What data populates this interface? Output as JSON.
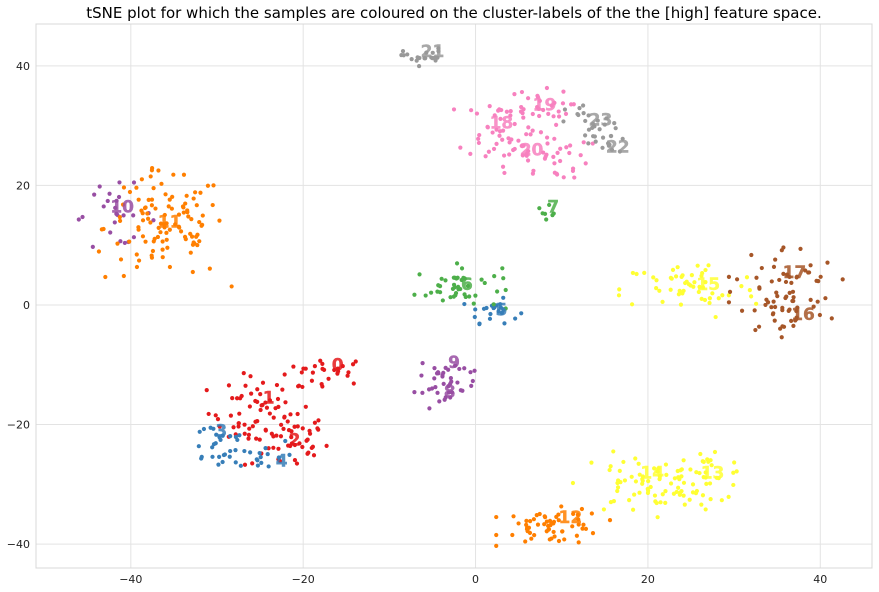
{
  "chart_data": {
    "type": "scatter",
    "title": "tSNE plot for which the samples are coloured on the cluster-labels of the the [high] feature space.",
    "xlabel": "",
    "ylabel": "",
    "xlim": [
      -51,
      46
    ],
    "ylim": [
      -44,
      47
    ],
    "xticks": [
      -40,
      -20,
      0,
      20,
      40
    ],
    "yticks": [
      -40,
      -20,
      0,
      20,
      40
    ],
    "grid": true,
    "clusters": [
      {
        "label": "0",
        "color": "#e41a1c",
        "cx": -17,
        "cy": -11,
        "sx": 2.5,
        "sy": 1.2,
        "n": 25,
        "lx": -16,
        "ly": -10
      },
      {
        "label": "1",
        "color": "#e41a1c",
        "cx": -25,
        "cy": -18,
        "sx": 3.0,
        "sy": 3.0,
        "n": 60,
        "lx": -24,
        "ly": -15.5
      },
      {
        "label": "2",
        "color": "#e41a1c",
        "cx": -22,
        "cy": -23,
        "sx": 2.5,
        "sy": 2.5,
        "n": 45,
        "lx": -21,
        "ly": -22.5
      },
      {
        "label": "3",
        "color": "#377eb8",
        "cx": -30,
        "cy": -23,
        "sx": 2.0,
        "sy": 2.2,
        "n": 25,
        "lx": -29.5,
        "ly": -21
      },
      {
        "label": "4",
        "color": "#377eb8",
        "cx": -25,
        "cy": -25,
        "sx": 2.0,
        "sy": 1.5,
        "n": 18,
        "lx": -22.5,
        "ly": -26
      },
      {
        "label": "5",
        "color": "#377eb8",
        "cx": 2,
        "cy": -1,
        "sx": 1.5,
        "sy": 1.0,
        "n": 22,
        "lx": 3,
        "ly": -0.8
      },
      {
        "label": "6",
        "color": "#4daf4a",
        "cx": -2,
        "cy": 3,
        "sx": 2.5,
        "sy": 1.8,
        "n": 45,
        "lx": -1,
        "ly": 3.5
      },
      {
        "label": "7",
        "color": "#4daf4a",
        "cx": 8.5,
        "cy": 16,
        "sx": 0.5,
        "sy": 0.8,
        "n": 7,
        "lx": 9,
        "ly": 16.5
      },
      {
        "label": "8",
        "color": "#984ea3",
        "cx": -3.5,
        "cy": -14,
        "sx": 1.8,
        "sy": 1.5,
        "n": 25,
        "lx": -3,
        "ly": -14.5
      },
      {
        "label": "9",
        "color": "#984ea3",
        "cx": -3,
        "cy": -11,
        "sx": 1.8,
        "sy": 1.0,
        "n": 15,
        "lx": -2.5,
        "ly": -9.5
      },
      {
        "label": "10",
        "color": "#984ea3",
        "cx": -42,
        "cy": 15,
        "sx": 2.5,
        "sy": 2.5,
        "n": 25,
        "lx": -41,
        "ly": 16.5
      },
      {
        "label": "11",
        "color": "#ff7f00",
        "cx": -36,
        "cy": 13,
        "sx": 3.5,
        "sy": 4.5,
        "n": 110,
        "lx": -35.5,
        "ly": 14
      },
      {
        "label": "12",
        "color": "#ff7f00",
        "cx": 9,
        "cy": -37,
        "sx": 3.0,
        "sy": 1.5,
        "n": 60,
        "lx": 11,
        "ly": -35.5
      },
      {
        "label": "13",
        "color": "#ffff33",
        "cx": 26,
        "cy": -29,
        "sx": 3.0,
        "sy": 2.0,
        "n": 45,
        "lx": 27.5,
        "ly": -28
      },
      {
        "label": "14",
        "color": "#ffff33",
        "cx": 19,
        "cy": -30,
        "sx": 3.5,
        "sy": 2.5,
        "n": 55,
        "lx": 20.5,
        "ly": -28
      },
      {
        "label": "15",
        "color": "#ffff33",
        "cx": 25,
        "cy": 2.5,
        "sx": 4.0,
        "sy": 2.5,
        "n": 55,
        "lx": 27,
        "ly": 3.5
      },
      {
        "label": "16",
        "color": "#a65628",
        "cx": 36,
        "cy": -1,
        "sx": 2.5,
        "sy": 2.0,
        "n": 30,
        "lx": 38,
        "ly": -1.5
      },
      {
        "label": "17",
        "color": "#a65628",
        "cx": 36,
        "cy": 4,
        "sx": 3.0,
        "sy": 3.0,
        "n": 45,
        "lx": 37,
        "ly": 5.5
      },
      {
        "label": "18",
        "color": "#f781bf",
        "cx": 3,
        "cy": 30,
        "sx": 2.5,
        "sy": 2.5,
        "n": 40,
        "lx": 3,
        "ly": 30.5
      },
      {
        "label": "19",
        "color": "#f781bf",
        "cx": 7,
        "cy": 33,
        "sx": 2.0,
        "sy": 1.5,
        "n": 25,
        "lx": 8,
        "ly": 33.5
      },
      {
        "label": "20",
        "color": "#f781bf",
        "cx": 7,
        "cy": 25,
        "sx": 3.0,
        "sy": 2.0,
        "n": 45,
        "lx": 6.5,
        "ly": 26
      },
      {
        "label": "21",
        "color": "#999999",
        "cx": -6,
        "cy": 41.5,
        "sx": 1.2,
        "sy": 0.7,
        "n": 20,
        "lx": -5,
        "ly": 42.5
      },
      {
        "label": "22",
        "color": "#999999",
        "cx": 15,
        "cy": 27,
        "sx": 1.5,
        "sy": 1.2,
        "n": 15,
        "lx": 16.5,
        "ly": 26.5
      },
      {
        "label": "23",
        "color": "#999999",
        "cx": 13.5,
        "cy": 30.5,
        "sx": 1.5,
        "sy": 1.5,
        "n": 20,
        "lx": 14.5,
        "ly": 31
      }
    ]
  }
}
